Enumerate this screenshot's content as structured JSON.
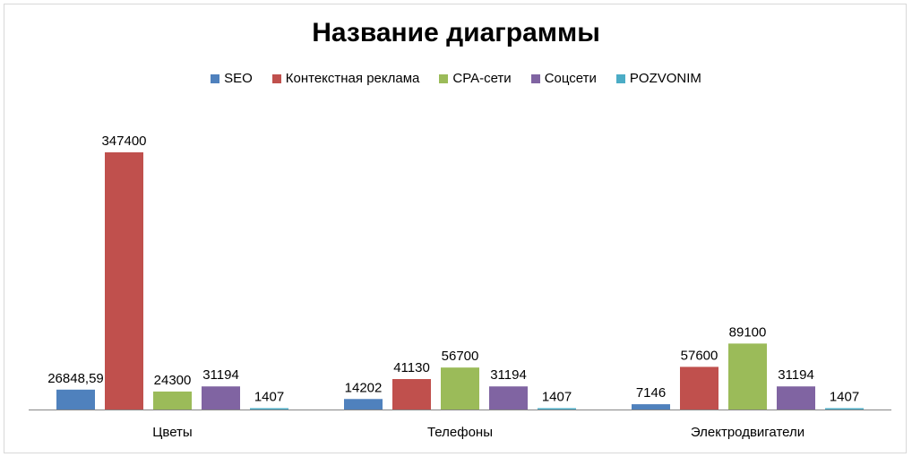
{
  "chart_data": {
    "type": "bar",
    "title": "Название диаграммы",
    "categories": [
      "Цветы",
      "Телефоны",
      "Электродвигатели"
    ],
    "series": [
      {
        "name": "SEO",
        "color": "#4f81bd",
        "values": [
          26848.59,
          14202,
          7146
        ],
        "labels": [
          "26848,59",
          "14202",
          "7146"
        ]
      },
      {
        "name": "Контекстная реклама",
        "color": "#c0504d",
        "values": [
          347400,
          41130,
          57600
        ],
        "labels": [
          "347400",
          "41130",
          "57600"
        ]
      },
      {
        "name": "CPA-сети",
        "color": "#9bbb59",
        "values": [
          24300,
          56700,
          89100
        ],
        "labels": [
          "24300",
          "56700",
          "89100"
        ]
      },
      {
        "name": "Соцсети",
        "color": "#8064a2",
        "values": [
          31194,
          31194,
          31194
        ],
        "labels": [
          "31194",
          "31194",
          "31194"
        ]
      },
      {
        "name": "POZVONIM",
        "color": "#4bacc6",
        "values": [
          1407,
          1407,
          1407
        ],
        "labels": [
          "1407",
          "1407",
          "1407"
        ]
      }
    ],
    "ylim": [
      0,
      347400
    ],
    "legend_position": "top",
    "grid": false
  }
}
